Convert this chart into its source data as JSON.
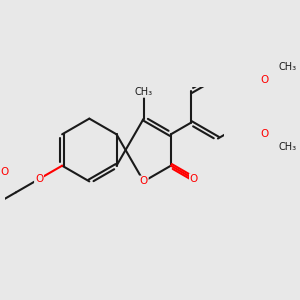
{
  "background_color": "#e8e8e8",
  "bond_color": "#1a1a1a",
  "oxygen_color": "#ff0000",
  "line_width": 1.5,
  "figsize": [
    3.0,
    3.0
  ],
  "dpi": 100,
  "xlim": [
    -3.8,
    4.2
  ],
  "ylim": [
    -2.5,
    2.5
  ]
}
